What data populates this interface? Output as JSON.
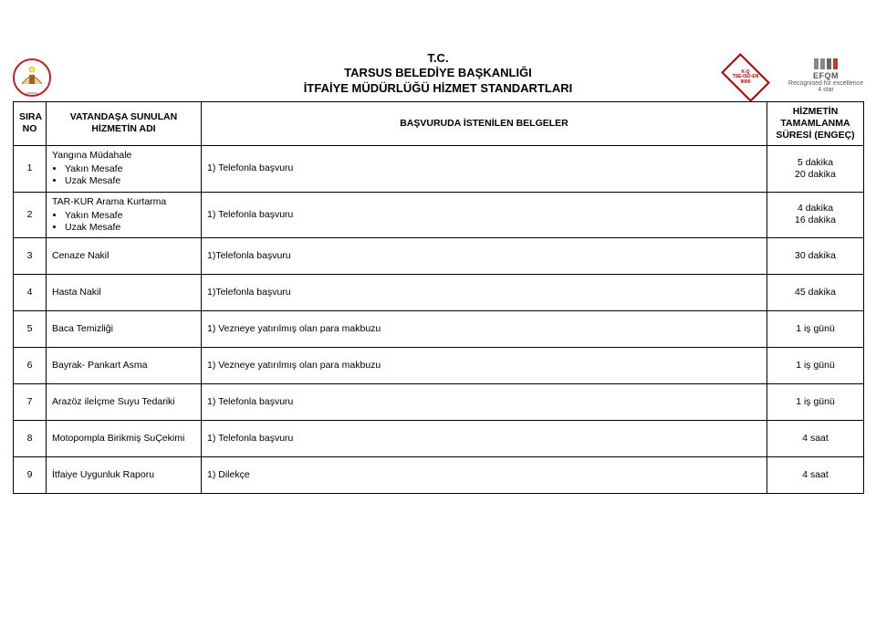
{
  "header": {
    "tc": "T.C.",
    "line1": "TARSUS BELEDİYE BAŞKANLIĞI",
    "line2": "İTFAİYE MÜDÜRLÜĞÜ HİZMET STANDARTLARI"
  },
  "badges": {
    "kitemark_line1": "K-Q",
    "kitemark_line2": "TSE-ISO-EN",
    "kitemark_line3": "9000",
    "efqm_label": "EFQM",
    "efqm_sub1": "Recognised for excellence",
    "efqm_sub2": "4 star",
    "colors": {
      "kitemark_border": "#b00000",
      "efqm_bar_dark": "#888888",
      "efqm_bar_dk2": "#666666",
      "efqm_bar_accent": "#c0392b"
    }
  },
  "columns": {
    "c1": "SIRA NO",
    "c2": "VATANDAŞA SUNULAN HİZMETİN ADI",
    "c3": "BAŞVURUDA İSTENİLEN BELGELER",
    "c4": "HİZMETİN TAMAMLANMA SÜRESİ (ENGEÇ)"
  },
  "rows": [
    {
      "no": "1",
      "service_name": "Yangına Müdahale",
      "service_bullets": [
        "Yakın Mesafe",
        "Uzak Mesafe"
      ],
      "docs": "1) Telefonla başvuru",
      "duration": "5 dakika\n20 dakika"
    },
    {
      "no": "2",
      "service_name": "TAR-KUR Arama Kurtarma",
      "service_bullets": [
        "Yakın Mesafe",
        "Uzak Mesafe"
      ],
      "docs": "1) Telefonla başvuru",
      "duration": "4 dakika\n16 dakika"
    },
    {
      "no": "3",
      "service_name": "Cenaze Nakil",
      "service_bullets": [],
      "docs": "1)Telefonla başvuru",
      "duration": "30 dakika"
    },
    {
      "no": "4",
      "service_name": "Hasta Nakil",
      "service_bullets": [],
      "docs": "1)Telefonla başvuru",
      "duration": "45 dakika"
    },
    {
      "no": "5",
      "service_name": "Baca Temizliği",
      "service_bullets": [],
      "docs": "1) Vezneye yatırılmış olan para makbuzu",
      "duration": "1 iş günü"
    },
    {
      "no": "6",
      "service_name": "Bayrak- Pankart Asma",
      "service_bullets": [],
      "docs": "1) Vezneye yatırılmış olan para makbuzu",
      "duration": "1 iş günü"
    },
    {
      "no": "7",
      "service_name": "Arazöz ileİçme Suyu Tedariki",
      "service_bullets": [],
      "docs": "1) Telefonla başvuru",
      "duration": "1 iş günü"
    },
    {
      "no": "8",
      "service_name": "Motopompla Birikmiş SuÇekimi",
      "service_bullets": [],
      "docs": "1) Telefonla başvuru",
      "duration": "4 saat"
    },
    {
      "no": "9",
      "service_name": "İtfaiye Uygunluk Raporu",
      "service_bullets": [],
      "docs": "1) Dilekçe",
      "duration": "4 saat"
    }
  ],
  "logo_left": {
    "label": "TARSUS BELEDİYESİ"
  }
}
